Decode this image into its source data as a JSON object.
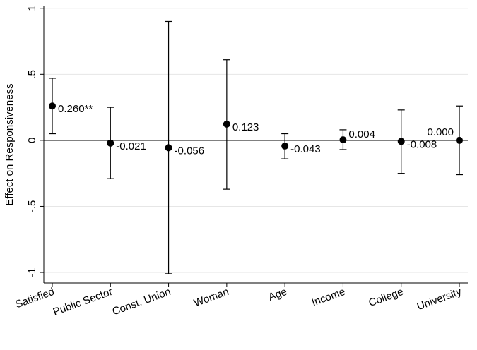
{
  "chart_data": {
    "type": "errorbar",
    "ylabel": "Effect on Responsiveness",
    "categories": [
      "Satisfied",
      "Public Sector",
      "Const. Union",
      "Woman",
      "Age",
      "Income",
      "College",
      "University"
    ],
    "values": [
      0.26,
      -0.021,
      -0.056,
      0.123,
      -0.043,
      0.004,
      -0.008,
      0.0
    ],
    "value_labels": [
      "0.260**",
      "-0.021",
      "-0.056",
      "0.123",
      "-0.043",
      "0.004",
      "-0.008",
      "0.000"
    ],
    "lower": [
      0.05,
      -0.29,
      -1.01,
      -0.37,
      -0.14,
      -0.07,
      -0.25,
      -0.26
    ],
    "upper": [
      0.47,
      0.25,
      0.9,
      0.61,
      0.05,
      0.08,
      0.23,
      0.26
    ],
    "color": "#000000",
    "ylim": [
      -1.08,
      1.02
    ],
    "yticks": [
      {
        "value": -1,
        "label": "-1"
      },
      {
        "value": -0.5,
        "label": "-.5"
      },
      {
        "value": 0,
        "label": "0"
      },
      {
        "value": 0.5,
        "label": ".5"
      },
      {
        "value": 1,
        "label": "1"
      }
    ],
    "grid": true
  }
}
